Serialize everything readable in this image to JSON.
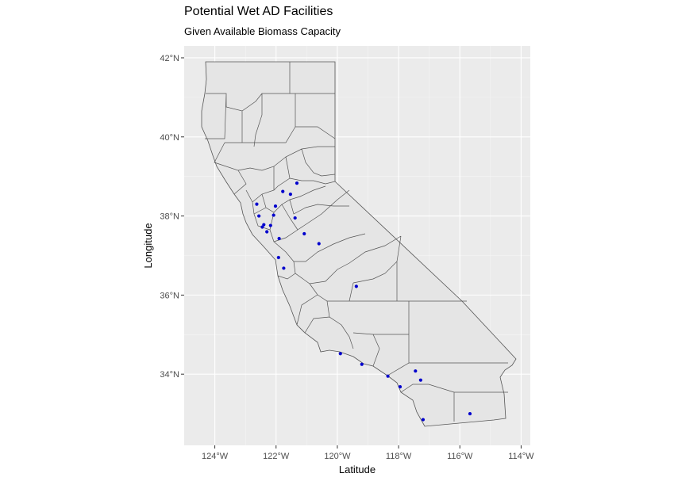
{
  "title": "Potential Wet AD Facilities",
  "subtitle": "Given Available Biomass Capacity",
  "chart_data": {
    "type": "scatter",
    "title": "Potential Wet AD Facilities",
    "subtitle": "Given Available Biomass Capacity",
    "xlabel": "Latitude",
    "ylabel": "Longitude",
    "xlim": [
      -125,
      -113.7
    ],
    "ylim": [
      32.2,
      42.3
    ],
    "x_ticks": [
      -124,
      -122,
      -120,
      -118,
      -116,
      -114
    ],
    "x_tick_labels": [
      "124°W",
      "122°W",
      "120°W",
      "118°W",
      "116°W",
      "114°W"
    ],
    "y_ticks": [
      34,
      36,
      38,
      40,
      42
    ],
    "y_tick_labels": [
      "34°N",
      "36°N",
      "38°N",
      "40°N",
      "42°N"
    ],
    "grid": true,
    "colors": {
      "panel": "#ebebeb",
      "grid": "#ffffff",
      "land": "#e5e5e5",
      "border": "#555555",
      "point": "#0000cd"
    },
    "points": [
      {
        "x": -122.63,
        "y": 38.3
      },
      {
        "x": -122.56,
        "y": 38.0
      },
      {
        "x": -122.4,
        "y": 37.78
      },
      {
        "x": -122.45,
        "y": 37.72
      },
      {
        "x": -122.3,
        "y": 37.6
      },
      {
        "x": -122.18,
        "y": 37.76
      },
      {
        "x": -122.08,
        "y": 38.02
      },
      {
        "x": -122.02,
        "y": 38.25
      },
      {
        "x": -121.9,
        "y": 37.43
      },
      {
        "x": -121.92,
        "y": 36.95
      },
      {
        "x": -121.75,
        "y": 36.68
      },
      {
        "x": -121.78,
        "y": 38.62
      },
      {
        "x": -121.53,
        "y": 38.55
      },
      {
        "x": -121.32,
        "y": 38.83
      },
      {
        "x": -121.38,
        "y": 37.95
      },
      {
        "x": -121.08,
        "y": 37.55
      },
      {
        "x": -120.6,
        "y": 37.3
      },
      {
        "x": -119.38,
        "y": 36.22
      },
      {
        "x": -119.9,
        "y": 34.52
      },
      {
        "x": -119.2,
        "y": 34.25
      },
      {
        "x": -118.35,
        "y": 33.95
      },
      {
        "x": -117.95,
        "y": 33.68
      },
      {
        "x": -117.45,
        "y": 34.08
      },
      {
        "x": -117.28,
        "y": 33.85
      },
      {
        "x": -117.2,
        "y": 32.85
      },
      {
        "x": -115.67,
        "y": 33.0
      }
    ]
  }
}
